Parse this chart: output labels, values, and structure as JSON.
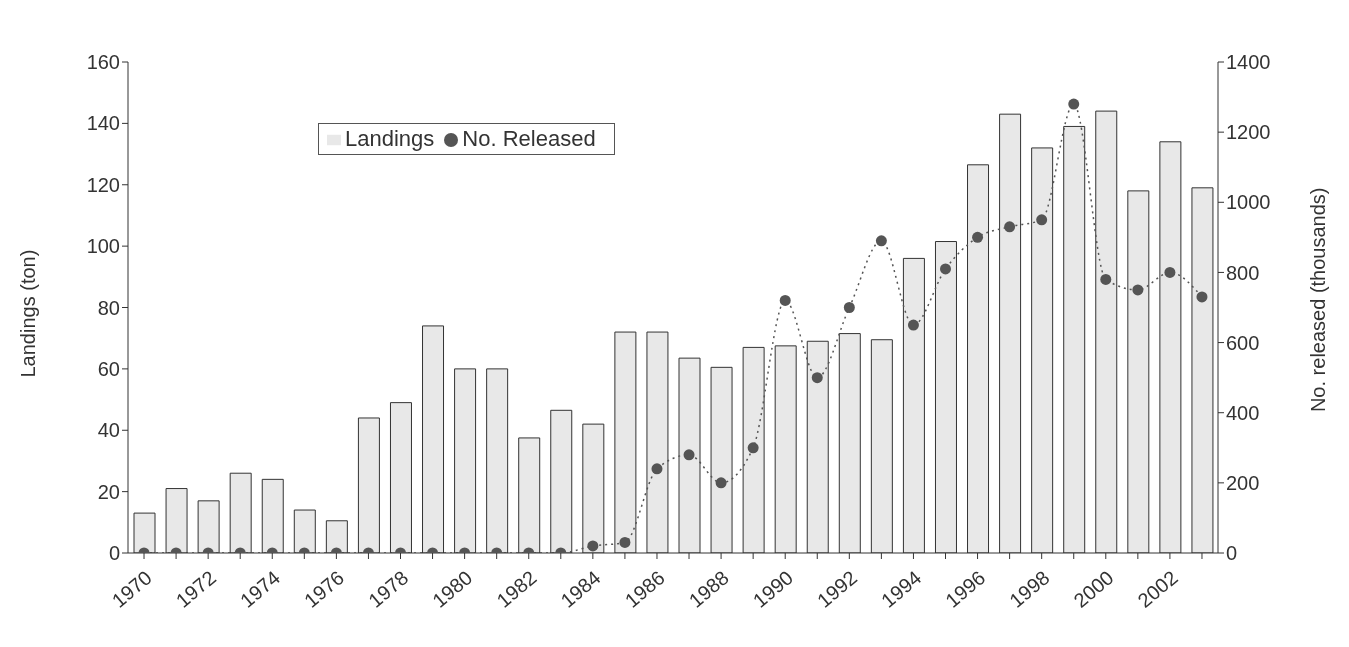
{
  "chart_data": {
    "type": "bar",
    "ylabel": "Landings (ton)",
    "y2label": "No. released (thousands)",
    "categories": [
      "1970",
      null,
      "1972",
      null,
      "1974",
      null,
      "1976",
      null,
      "1978",
      null,
      "1980",
      null,
      "1982",
      null,
      "1984",
      null,
      "1986",
      null,
      "1988",
      null,
      "1990",
      null,
      "1992",
      null,
      "1994",
      null,
      "1996",
      null,
      "1998",
      null,
      "2000",
      null,
      "2002",
      null
    ],
    "series": [
      {
        "name": "Landings",
        "color": "#e8e8e8",
        "values": [
          13,
          21,
          17,
          26,
          24,
          14,
          10.5,
          44,
          49,
          74,
          60,
          60,
          37.5,
          46.5,
          42,
          72,
          72,
          63.5,
          60.5,
          67,
          67.5,
          69,
          71.5,
          69.5,
          96,
          101.5,
          126.5,
          143,
          132,
          139,
          144,
          118,
          134,
          119
        ]
      },
      {
        "name": "No. Released",
        "type": "line",
        "axis": "y2",
        "color": "#555555",
        "marker": "circle",
        "line_style": "dotted",
        "values": [
          0,
          0,
          0,
          0,
          0,
          0,
          0,
          0,
          0,
          0,
          0,
          0,
          0,
          0,
          20,
          30,
          240,
          280,
          200,
          300,
          720,
          500,
          700,
          890,
          650,
          810,
          900,
          930,
          950,
          1280,
          780,
          750,
          800,
          730
        ]
      }
    ],
    "ylim": [
      0,
      160
    ],
    "yticks": [
      0,
      20,
      40,
      60,
      80,
      100,
      120,
      140,
      160
    ],
    "y2lim": [
      0,
      1400
    ],
    "y2ticks": [
      0,
      200,
      400,
      600,
      800,
      1000,
      1200,
      1400
    ],
    "legend": "top",
    "grid": false
  }
}
